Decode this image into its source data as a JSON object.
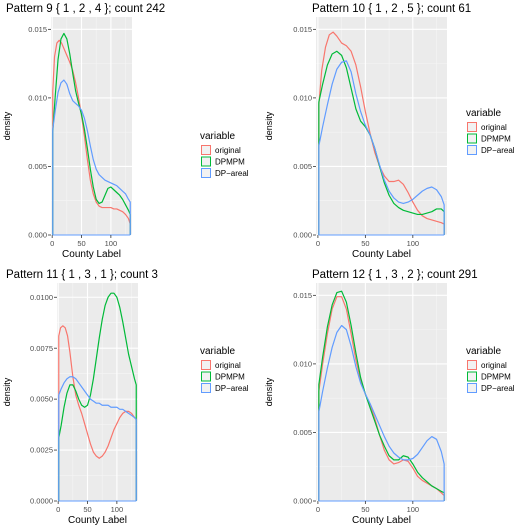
{
  "chart_data": [
    {
      "type": "line",
      "title": "Pattern 9 { 1 , 2 , 4 }; count 242",
      "xlabel": "County Label",
      "ylabel": "density",
      "xlim": [
        -2,
        136
      ],
      "ylim": [
        0,
        0.0159
      ],
      "xticks": [
        0,
        50,
        100
      ],
      "yticks": [
        0.0,
        0.005,
        0.01,
        0.015
      ],
      "ytick_labels": [
        "0.000",
        "0.005",
        "0.010",
        "0.015"
      ],
      "legend": {
        "title": "variable",
        "position": "right"
      },
      "series": [
        {
          "name": "original",
          "color": "#F8766D",
          "x": [
            1,
            4,
            8,
            12,
            16,
            20,
            25,
            30,
            35,
            40,
            45,
            50,
            55,
            60,
            65,
            70,
            75,
            80,
            85,
            90,
            95,
            100,
            105,
            110,
            115,
            120,
            125,
            130,
            133
          ],
          "y": [
            0.0105,
            0.013,
            0.014,
            0.0142,
            0.014,
            0.0136,
            0.0131,
            0.0126,
            0.012,
            0.0111,
            0.01,
            0.0087,
            0.0072,
            0.0055,
            0.004,
            0.003,
            0.0024,
            0.0021,
            0.002,
            0.002,
            0.002,
            0.002,
            0.0019,
            0.0019,
            0.0018,
            0.0017,
            0.0015,
            0.0012,
            0.0008
          ]
        },
        {
          "name": "DPMPM",
          "color": "#00BA38",
          "x": [
            1,
            5,
            10,
            15,
            20,
            25,
            30,
            35,
            40,
            45,
            50,
            55,
            60,
            65,
            70,
            75,
            80,
            85,
            90,
            95,
            100,
            105,
            110,
            115,
            120,
            125,
            130,
            133
          ],
          "y": [
            0.0075,
            0.01,
            0.0128,
            0.0143,
            0.0147,
            0.0143,
            0.0132,
            0.0118,
            0.0105,
            0.0096,
            0.0088,
            0.0077,
            0.0063,
            0.0048,
            0.0035,
            0.0026,
            0.0023,
            0.0024,
            0.0029,
            0.0034,
            0.0035,
            0.0033,
            0.0031,
            0.0029,
            0.0026,
            0.0022,
            0.0018,
            0.0015
          ]
        },
        {
          "name": "DP−areal",
          "color": "#619CFF",
          "x": [
            1,
            5,
            10,
            15,
            20,
            25,
            30,
            35,
            40,
            45,
            50,
            55,
            60,
            65,
            70,
            75,
            80,
            85,
            90,
            95,
            100,
            105,
            110,
            115,
            120,
            125,
            130,
            133
          ],
          "y": [
            0.0077,
            0.009,
            0.0104,
            0.0111,
            0.0113,
            0.011,
            0.0103,
            0.0098,
            0.0096,
            0.0094,
            0.0091,
            0.0085,
            0.0076,
            0.0065,
            0.0055,
            0.0048,
            0.0044,
            0.0042,
            0.004,
            0.0039,
            0.0038,
            0.0037,
            0.0036,
            0.0034,
            0.0032,
            0.003,
            0.0026,
            0.0024
          ]
        }
      ]
    },
    {
      "type": "line",
      "title": "Pattern 10 { 1 , 2 , 5 }; count 61",
      "xlabel": "County Label",
      "ylabel": "density",
      "xlim": [
        -2,
        136
      ],
      "ylim": [
        0,
        0.0159
      ],
      "xticks": [
        0,
        50,
        100
      ],
      "yticks": [
        0.0,
        0.005,
        0.01,
        0.015
      ],
      "ytick_labels": [
        "0.000",
        "0.005",
        "0.010",
        "0.015"
      ],
      "legend": {
        "title": "variable",
        "position": "right"
      },
      "series": [
        {
          "name": "original",
          "color": "#F8766D",
          "x": [
            1,
            4,
            8,
            12,
            16,
            20,
            25,
            30,
            35,
            40,
            45,
            50,
            55,
            60,
            65,
            70,
            75,
            80,
            85,
            90,
            95,
            100,
            105,
            110,
            115,
            120,
            125,
            130,
            133
          ],
          "y": [
            0.0095,
            0.012,
            0.0137,
            0.0146,
            0.0148,
            0.0145,
            0.014,
            0.0138,
            0.0134,
            0.0124,
            0.0108,
            0.009,
            0.0074,
            0.006,
            0.005,
            0.0043,
            0.0039,
            0.0039,
            0.004,
            0.0037,
            0.0031,
            0.0024,
            0.0018,
            0.0014,
            0.0012,
            0.0011,
            0.001,
            0.0009,
            0.0008
          ]
        },
        {
          "name": "DPMPM",
          "color": "#00BA38",
          "x": [
            1,
            5,
            10,
            15,
            20,
            25,
            30,
            35,
            40,
            45,
            50,
            55,
            60,
            65,
            70,
            75,
            80,
            85,
            90,
            95,
            100,
            105,
            110,
            115,
            120,
            125,
            130,
            133
          ],
          "y": [
            0.0097,
            0.011,
            0.0124,
            0.0132,
            0.0134,
            0.0131,
            0.0122,
            0.0107,
            0.0092,
            0.0083,
            0.0079,
            0.0073,
            0.0063,
            0.005,
            0.0038,
            0.0029,
            0.0023,
            0.002,
            0.0018,
            0.0017,
            0.0016,
            0.0015,
            0.0015,
            0.0016,
            0.0017,
            0.0019,
            0.0019,
            0.0017
          ]
        },
        {
          "name": "DP−areal",
          "color": "#619CFF",
          "x": [
            1,
            5,
            10,
            15,
            20,
            25,
            30,
            35,
            40,
            45,
            50,
            55,
            60,
            65,
            70,
            75,
            80,
            85,
            90,
            95,
            100,
            105,
            110,
            115,
            120,
            125,
            130,
            133
          ],
          "y": [
            0.0065,
            0.0079,
            0.0095,
            0.011,
            0.0121,
            0.0126,
            0.0127,
            0.0119,
            0.0103,
            0.009,
            0.008,
            0.0073,
            0.0063,
            0.0051,
            0.004,
            0.0032,
            0.0027,
            0.0024,
            0.0023,
            0.0024,
            0.0026,
            0.0029,
            0.0032,
            0.0034,
            0.0035,
            0.0033,
            0.0028,
            0.0022
          ]
        }
      ]
    },
    {
      "type": "line",
      "title": "Pattern 11 { 1 , 3 , 1 }; count 3",
      "xlabel": "County Label",
      "ylabel": "density",
      "xlim": [
        -2,
        136
      ],
      "ylim": [
        0,
        0.0107
      ],
      "xticks": [
        0,
        50,
        100
      ],
      "yticks": [
        0.0,
        0.0025,
        0.005,
        0.0075,
        0.01
      ],
      "ytick_labels": [
        "0.0000",
        "0.0025",
        "0.0050",
        "0.0075",
        "0.0100"
      ],
      "legend": {
        "title": "variable",
        "position": "right"
      },
      "series": [
        {
          "name": "original",
          "color": "#F8766D",
          "x": [
            1,
            4,
            8,
            12,
            16,
            20,
            25,
            30,
            35,
            40,
            45,
            50,
            55,
            60,
            65,
            70,
            75,
            80,
            85,
            90,
            95,
            100,
            105,
            110,
            115,
            120,
            125,
            130,
            133
          ],
          "y": [
            0.0081,
            0.0085,
            0.0086,
            0.0085,
            0.0081,
            0.0073,
            0.0061,
            0.0052,
            0.0047,
            0.0043,
            0.0038,
            0.0033,
            0.0028,
            0.0024,
            0.0022,
            0.0021,
            0.0022,
            0.0024,
            0.0027,
            0.0031,
            0.0035,
            0.0038,
            0.0041,
            0.0043,
            0.0044,
            0.0044,
            0.0043,
            0.0041,
            0.004
          ]
        },
        {
          "name": "DPMPM",
          "color": "#00BA38",
          "x": [
            1,
            5,
            10,
            15,
            20,
            25,
            30,
            35,
            40,
            45,
            50,
            55,
            60,
            65,
            70,
            75,
            80,
            85,
            90,
            95,
            100,
            105,
            110,
            115,
            120,
            125,
            130,
            133
          ],
          "y": [
            0.0031,
            0.0037,
            0.0046,
            0.0053,
            0.0057,
            0.0057,
            0.0054,
            0.005,
            0.0047,
            0.0046,
            0.0047,
            0.0052,
            0.006,
            0.007,
            0.008,
            0.0089,
            0.0096,
            0.01,
            0.0102,
            0.0102,
            0.01,
            0.0095,
            0.0088,
            0.008,
            0.0072,
            0.0066,
            0.006,
            0.0057
          ]
        },
        {
          "name": "DP−areal",
          "color": "#619CFF",
          "x": [
            1,
            5,
            10,
            15,
            20,
            25,
            30,
            35,
            40,
            45,
            50,
            55,
            60,
            65,
            70,
            75,
            80,
            85,
            90,
            95,
            100,
            105,
            110,
            115,
            120,
            125,
            130,
            133
          ],
          "y": [
            0.0052,
            0.0055,
            0.0058,
            0.006,
            0.0061,
            0.0061,
            0.006,
            0.0058,
            0.0056,
            0.0054,
            0.0052,
            0.005,
            0.0049,
            0.0048,
            0.0048,
            0.0047,
            0.0047,
            0.0047,
            0.0046,
            0.0046,
            0.0046,
            0.0045,
            0.0045,
            0.0044,
            0.0043,
            0.0042,
            0.0041,
            0.004
          ]
        }
      ]
    },
    {
      "type": "line",
      "title": "Pattern 12 { 1 , 3 , 2 }; count 291",
      "xlabel": "County Label",
      "ylabel": "density",
      "xlim": [
        -2,
        136
      ],
      "ylim": [
        0,
        0.0159
      ],
      "xticks": [
        0,
        50,
        100
      ],
      "yticks": [
        0.0,
        0.005,
        0.01,
        0.015
      ],
      "ytick_labels": [
        "0.000",
        "0.005",
        "0.010",
        "0.015"
      ],
      "legend": {
        "title": "variable",
        "position": "right"
      },
      "series": [
        {
          "name": "original",
          "color": "#F8766D",
          "x": [
            1,
            5,
            10,
            15,
            20,
            25,
            30,
            35,
            40,
            45,
            50,
            55,
            60,
            65,
            70,
            75,
            80,
            85,
            90,
            95,
            100,
            105,
            110,
            115,
            120,
            125,
            130,
            133
          ],
          "y": [
            0.008,
            0.01,
            0.0122,
            0.014,
            0.0149,
            0.0149,
            0.014,
            0.0122,
            0.0103,
            0.0088,
            0.0078,
            0.007,
            0.006,
            0.0048,
            0.0037,
            0.003,
            0.0027,
            0.0028,
            0.003,
            0.0029,
            0.0024,
            0.0018,
            0.0015,
            0.0013,
            0.0011,
            0.0009,
            0.0006,
            0.0004
          ]
        },
        {
          "name": "DPMPM",
          "color": "#00BA38",
          "x": [
            1,
            5,
            10,
            15,
            20,
            25,
            30,
            35,
            40,
            45,
            50,
            55,
            60,
            65,
            70,
            75,
            80,
            85,
            90,
            95,
            100,
            105,
            110,
            115,
            120,
            125,
            130,
            133
          ],
          "y": [
            0.0085,
            0.0105,
            0.0127,
            0.0143,
            0.0152,
            0.0153,
            0.0145,
            0.0128,
            0.0108,
            0.009,
            0.0078,
            0.0068,
            0.0058,
            0.0048,
            0.004,
            0.0033,
            0.003,
            0.003,
            0.0033,
            0.0032,
            0.0027,
            0.0021,
            0.0017,
            0.0014,
            0.0011,
            0.0009,
            0.0007,
            0.0006
          ]
        },
        {
          "name": "DP−areal",
          "color": "#619CFF",
          "x": [
            1,
            5,
            10,
            15,
            20,
            25,
            30,
            35,
            40,
            45,
            50,
            55,
            60,
            65,
            70,
            75,
            80,
            85,
            90,
            95,
            100,
            105,
            110,
            115,
            120,
            125,
            130,
            133
          ],
          "y": [
            0.0065,
            0.008,
            0.0097,
            0.0112,
            0.0123,
            0.0128,
            0.0125,
            0.0113,
            0.0098,
            0.0086,
            0.0078,
            0.0071,
            0.0063,
            0.0055,
            0.0047,
            0.004,
            0.0035,
            0.0032,
            0.003,
            0.003,
            0.0031,
            0.0034,
            0.0039,
            0.0044,
            0.0047,
            0.0045,
            0.0036,
            0.0027
          ]
        }
      ]
    }
  ]
}
